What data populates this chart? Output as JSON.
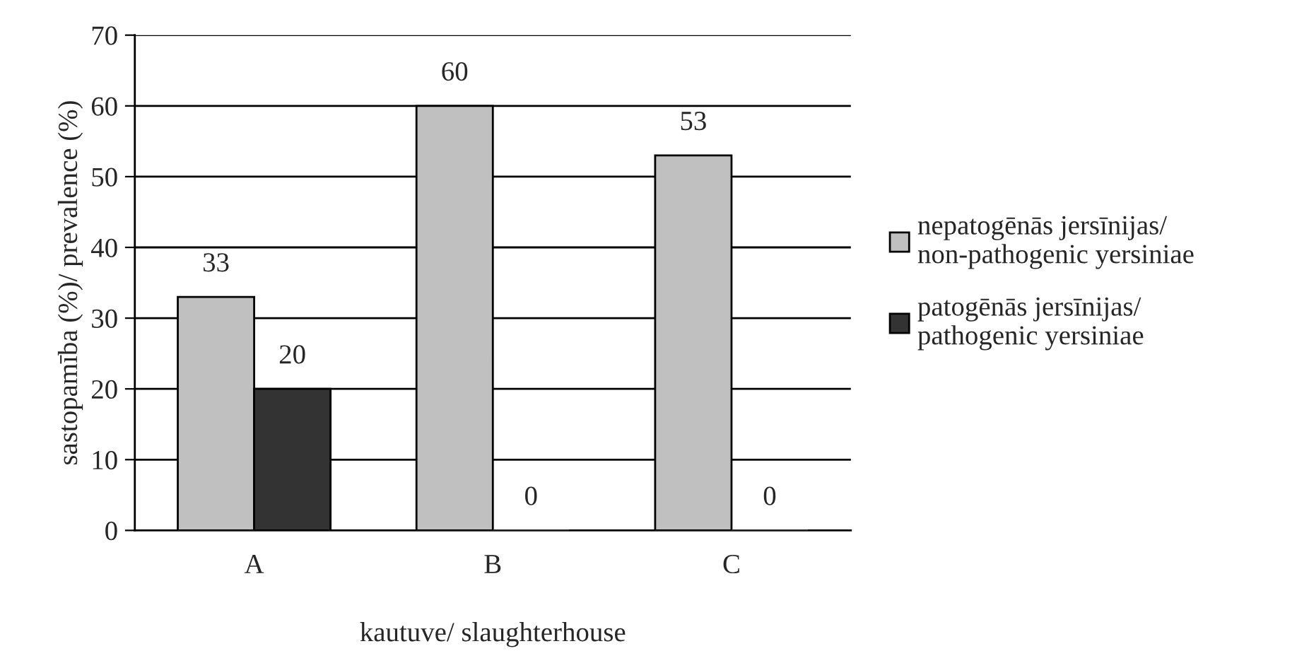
{
  "chart_data": {
    "type": "bar",
    "xlabel": "kautuve/ slaughterhouse",
    "ylabel": "sastopamība (%)/ prevalence (%)",
    "categories": [
      "A",
      "B",
      "C"
    ],
    "series": [
      {
        "name": "nepatogēnās jersīnijas/\nnon-pathogenic yersiniae",
        "color": "#c0c0c0",
        "values": [
          33,
          60,
          53
        ]
      },
      {
        "name": "patogēnās jersīnijas/\npathogenic yersiniae",
        "color": "#333333",
        "values": [
          20,
          0,
          0
        ]
      }
    ],
    "ylim": [
      0,
      70
    ],
    "yticks": [
      0,
      10,
      20,
      30,
      40,
      50,
      60,
      70
    ],
    "grid": "y",
    "legend": "right",
    "data_labels": true
  }
}
